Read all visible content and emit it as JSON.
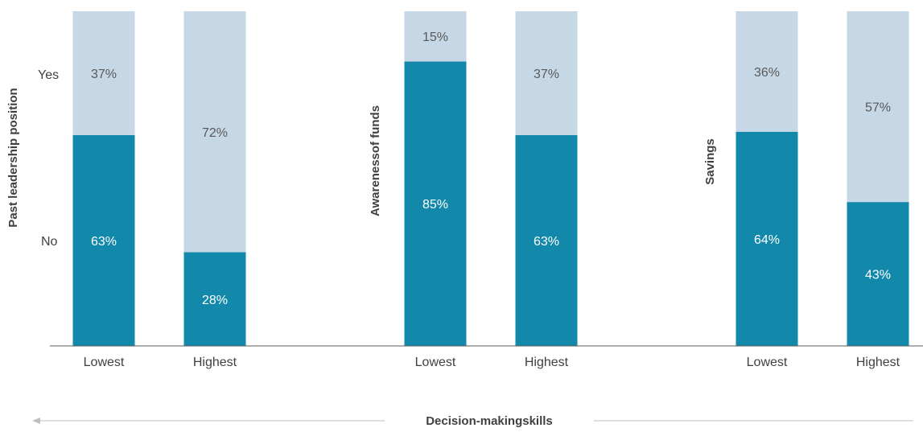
{
  "colors": {
    "no": "#1289aa",
    "yes": "#c6d8e6",
    "axis": "#595959",
    "arrow": "#bfbfbf"
  },
  "legend_levels": {
    "yes": "Yes",
    "no": "No"
  },
  "bottom_label": "Decision-makingskills",
  "chart_data": [
    {
      "type": "bar",
      "stacked": true,
      "ylabel": "Past leadership position",
      "categories": [
        "Lowest",
        "Highest"
      ],
      "series": [
        {
          "name": "No",
          "values": [
            63,
            28
          ]
        },
        {
          "name": "Yes",
          "values": [
            37,
            72
          ]
        }
      ],
      "ylim": [
        0,
        100
      ]
    },
    {
      "type": "bar",
      "stacked": true,
      "ylabel": "Awarenessof funds",
      "categories": [
        "Lowest",
        "Highest"
      ],
      "series": [
        {
          "name": "No",
          "values": [
            85,
            63
          ]
        },
        {
          "name": "Yes",
          "values": [
            15,
            37
          ]
        }
      ],
      "ylim": [
        0,
        100
      ]
    },
    {
      "type": "bar",
      "stacked": true,
      "ylabel": "Savings",
      "categories": [
        "Lowest",
        "Highest"
      ],
      "series": [
        {
          "name": "No",
          "values": [
            64,
            43
          ]
        },
        {
          "name": "Yes",
          "values": [
            36,
            57
          ]
        }
      ],
      "ylim": [
        0,
        100
      ]
    }
  ]
}
